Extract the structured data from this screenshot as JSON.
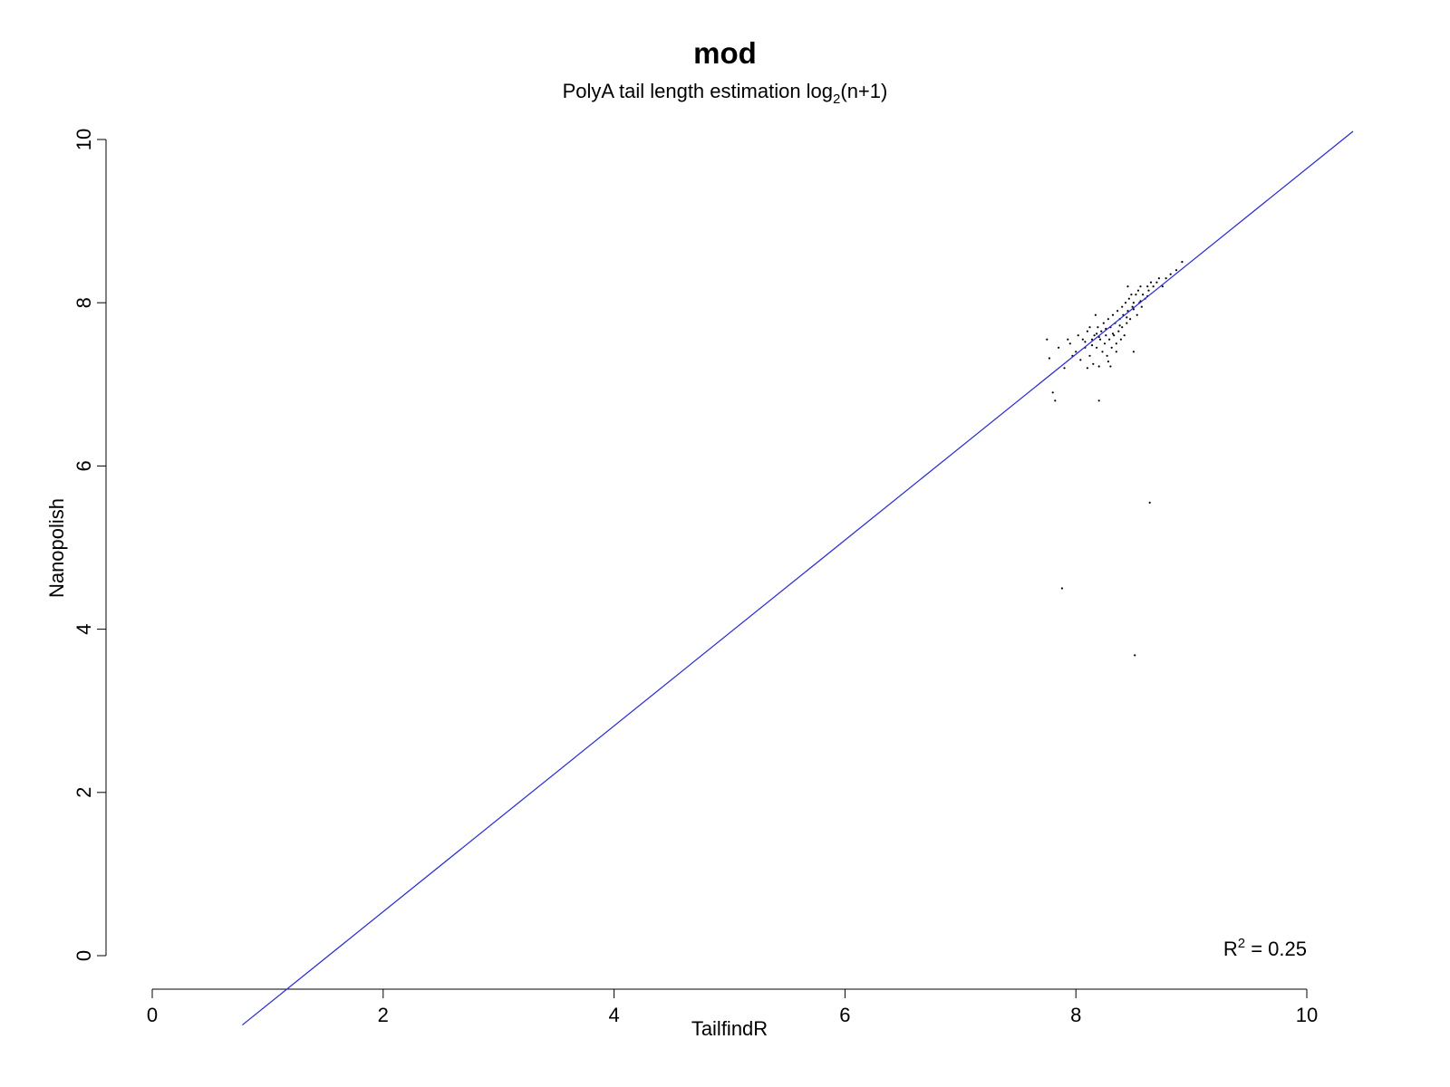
{
  "chart_data": {
    "type": "scatter",
    "title": "mod",
    "subtitle": {
      "prefix": "PolyA tail length estimation log",
      "subscript": "2",
      "suffix": "(n+1)"
    },
    "xlabel": "TailfindR",
    "ylabel": "Nanopolish",
    "xlim": [
      0,
      10
    ],
    "ylim": [
      0,
      10
    ],
    "x_ticks": [
      0,
      2,
      4,
      6,
      8,
      10
    ],
    "y_ticks": [
      0,
      2,
      4,
      6,
      8,
      10
    ],
    "grid": false,
    "legend": "none",
    "colors": {
      "points": "#000000",
      "fit_line": "#2323ff",
      "axes": "#000000"
    },
    "fit_line": {
      "x1": 0.78,
      "y1": -0.85,
      "x2": 10.4,
      "y2": 10.1
    },
    "annotation": {
      "prefix": "R",
      "superscript": "2",
      "suffix": " = 0.25"
    },
    "points": [
      [
        7.75,
        7.55
      ],
      [
        7.77,
        7.32
      ],
      [
        7.8,
        6.9
      ],
      [
        7.82,
        6.8
      ],
      [
        7.85,
        7.45
      ],
      [
        7.88,
        4.5
      ],
      [
        7.9,
        7.2
      ],
      [
        7.93,
        7.55
      ],
      [
        7.95,
        7.5
      ],
      [
        7.97,
        7.35
      ],
      [
        8.0,
        7.4
      ],
      [
        8.02,
        7.6
      ],
      [
        8.04,
        7.3
      ],
      [
        8.06,
        7.55
      ],
      [
        8.08,
        7.45
      ],
      [
        8.1,
        7.2
      ],
      [
        8.1,
        7.65
      ],
      [
        8.12,
        7.35
      ],
      [
        8.12,
        7.7
      ],
      [
        8.14,
        7.55
      ],
      [
        8.15,
        7.25
      ],
      [
        8.16,
        7.6
      ],
      [
        8.17,
        7.85
      ],
      [
        8.18,
        7.45
      ],
      [
        8.19,
        7.7
      ],
      [
        8.2,
        7.22
      ],
      [
        8.2,
        6.8
      ],
      [
        8.21,
        7.55
      ],
      [
        8.22,
        7.65
      ],
      [
        8.23,
        7.4
      ],
      [
        8.24,
        7.75
      ],
      [
        8.25,
        7.5
      ],
      [
        8.26,
        7.6
      ],
      [
        8.27,
        7.35
      ],
      [
        8.28,
        7.8
      ],
      [
        8.29,
        7.55
      ],
      [
        8.3,
        7.7
      ],
      [
        8.3,
        7.22
      ],
      [
        8.31,
        7.45
      ],
      [
        8.32,
        7.85
      ],
      [
        8.33,
        7.6
      ],
      [
        8.34,
        7.75
      ],
      [
        8.35,
        7.5
      ],
      [
        8.36,
        7.9
      ],
      [
        8.37,
        7.65
      ],
      [
        8.38,
        7.8
      ],
      [
        8.39,
        7.55
      ],
      [
        8.4,
        7.95
      ],
      [
        8.4,
        7.7
      ],
      [
        8.41,
        7.85
      ],
      [
        8.42,
        7.6
      ],
      [
        8.43,
        8.0
      ],
      [
        8.44,
        7.75
      ],
      [
        8.45,
        8.2
      ],
      [
        8.45,
        7.9
      ],
      [
        8.46,
        8.05
      ],
      [
        8.47,
        7.8
      ],
      [
        8.48,
        8.1
      ],
      [
        8.49,
        7.95
      ],
      [
        8.5,
        7.4
      ],
      [
        8.5,
        8.0
      ],
      [
        8.51,
        3.68
      ],
      [
        8.52,
        8.1
      ],
      [
        8.53,
        7.85
      ],
      [
        8.54,
        8.15
      ],
      [
        8.55,
        8.0
      ],
      [
        8.56,
        8.2
      ],
      [
        8.57,
        7.95
      ],
      [
        8.58,
        8.1
      ],
      [
        8.6,
        8.05
      ],
      [
        8.62,
        8.2
      ],
      [
        8.63,
        8.15
      ],
      [
        8.64,
        5.55
      ],
      [
        8.65,
        8.25
      ],
      [
        8.67,
        8.2
      ],
      [
        8.7,
        8.25
      ],
      [
        8.72,
        8.3
      ],
      [
        8.75,
        8.2
      ],
      [
        8.78,
        8.3
      ],
      [
        8.82,
        8.35
      ],
      [
        8.87,
        8.4
      ],
      [
        8.92,
        8.5
      ],
      [
        8.08,
        7.52
      ],
      [
        8.14,
        7.48
      ],
      [
        8.2,
        7.58
      ],
      [
        8.26,
        7.68
      ],
      [
        8.32,
        7.62
      ],
      [
        8.38,
        7.72
      ],
      [
        8.44,
        7.82
      ],
      [
        8.5,
        7.92
      ],
      [
        8.56,
        8.02
      ],
      [
        8.62,
        8.08
      ],
      [
        8.35,
        7.4
      ],
      [
        8.28,
        7.28
      ],
      [
        8.18,
        7.62
      ]
    ]
  }
}
